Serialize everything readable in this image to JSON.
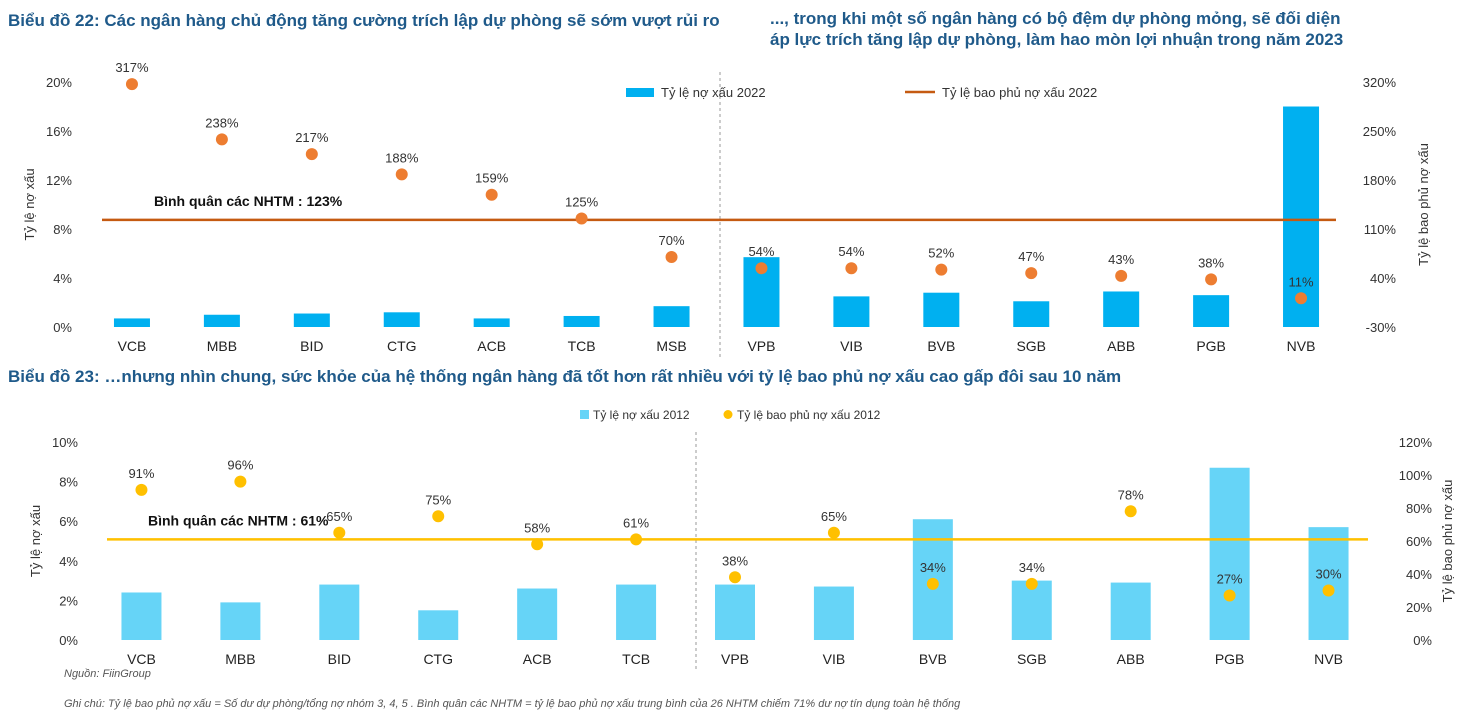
{
  "chart_data": [
    {
      "type": "bar+scatter",
      "title": "Biểu đồ 22: Các ngân hàng chủ động tăng cường trích lập dự phòng sẽ sớm vượt rủi ro",
      "subtitle": "..., trong khi một số ngân hàng có bộ đệm dự phòng mỏng, sẽ đối diện áp lực trích tăng lập dự phòng, làm hao mòn lợi nhuận trong năm 2023",
      "categories": [
        "VCB",
        "MBB",
        "BID",
        "CTG",
        "ACB",
        "TCB",
        "MSB",
        "VPB",
        "VIB",
        "BVB",
        "SGB",
        "ABB",
        "PGB",
        "NVB"
      ],
      "series": [
        {
          "name": "Tỷ lệ nợ xấu 2022",
          "axis": "left",
          "values": [
            0.7,
            1.0,
            1.1,
            1.2,
            0.7,
            0.9,
            1.7,
            5.7,
            2.5,
            2.8,
            2.1,
            2.9,
            2.6,
            18.0
          ]
        },
        {
          "name": "Tỷ lệ bao phủ nợ xấu 2022",
          "axis": "right",
          "values": [
            317,
            238,
            217,
            188,
            159,
            125,
            70,
            54,
            54,
            52,
            47,
            43,
            38,
            11
          ],
          "labels": [
            "317%",
            "238%",
            "217%",
            "188%",
            "159%",
            "125%",
            "70%",
            "54%",
            "54%",
            "52%",
            "47%",
            "43%",
            "38%",
            "11%"
          ]
        }
      ],
      "average": {
        "value": 123,
        "label": "Bình quân các NHTM : 123%"
      },
      "ylabel": "Tỷ lệ nợ xấu",
      "y2label": "Tỷ lệ bao phủ nợ xấu",
      "ylim": [
        0,
        20
      ],
      "y2lim": [
        -30,
        320
      ],
      "yticks": [
        "0%",
        "4%",
        "8%",
        "12%",
        "16%",
        "20%"
      ],
      "y2ticks": [
        "-30%",
        "40%",
        "110%",
        "180%",
        "250%",
        "320%"
      ],
      "y2tick_values": [
        -30,
        40,
        110,
        180,
        250,
        320
      ],
      "legend": [
        "Tỷ lệ nợ xấu 2022",
        "Tỷ lệ bao phủ nợ xấu 2022"
      ],
      "colors": {
        "bar": "#00b0f0",
        "scatter": "#ed7d31",
        "line": "#c55a11"
      }
    },
    {
      "type": "bar+scatter",
      "title": "Biểu đồ 23: …nhưng nhìn chung, sức khỏe của hệ thống ngân hàng đã tốt hơn rất nhiều với tỷ lệ bao phủ nợ xấu cao gấp đôi sau 10 năm",
      "categories": [
        "VCB",
        "MBB",
        "BID",
        "CTG",
        "ACB",
        "TCB",
        "VPB",
        "VIB",
        "BVB",
        "SGB",
        "ABB",
        "PGB",
        "NVB"
      ],
      "series": [
        {
          "name": "Tỷ lệ nợ xấu 2012",
          "axis": "left",
          "values": [
            2.4,
            1.9,
            2.8,
            1.5,
            2.6,
            2.8,
            2.8,
            2.7,
            6.1,
            3.0,
            2.9,
            8.7,
            5.7
          ]
        },
        {
          "name": "Tỷ lệ bao phủ nợ xấu 2012",
          "axis": "right",
          "values": [
            91,
            96,
            65,
            75,
            58,
            61,
            38,
            65,
            34,
            34,
            78,
            27,
            30
          ],
          "labels": [
            "91%",
            "96%",
            "65%",
            "75%",
            "58%",
            "61%",
            "38%",
            "65%",
            "34%",
            "34%",
            "78%",
            "27%",
            "30%"
          ]
        }
      ],
      "average": {
        "value": 61,
        "label": "Bình quân các NHTM : 61%"
      },
      "ylabel": "Tỷ lệ nợ xấu",
      "y2label": "Tỷ lệ bao phủ nợ xấu",
      "ylim": [
        0,
        10
      ],
      "y2lim": [
        0,
        120
      ],
      "yticks": [
        "0%",
        "2%",
        "4%",
        "6%",
        "8%",
        "10%"
      ],
      "y2ticks": [
        "0%",
        "20%",
        "40%",
        "60%",
        "80%",
        "100%",
        "120%"
      ],
      "legend": [
        "Tỷ lệ nợ xấu 2012",
        "Tỷ lệ bao phủ nợ xấu 2012"
      ],
      "colors": {
        "bar": "#66d4f7",
        "scatter": "#ffc000",
        "line": "#ffc000"
      }
    }
  ],
  "source": "Nguồn: FiinGroup",
  "footnote": "Ghi chú: Tỷ lệ bao phủ nợ xấu = Số dư dự phòng/tổng nợ nhóm 3, 4, 5 . Bình quân các NHTM = tỷ lệ bao phủ nợ xấu trung bình của 26 NHTM chiếm 71% dư nợ tín dụng toàn hệ thống"
}
